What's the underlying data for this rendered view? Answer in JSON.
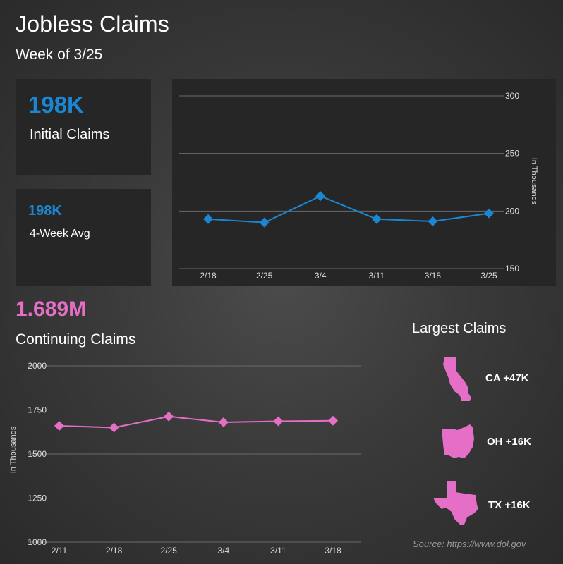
{
  "header": {
    "title": "Jobless Claims",
    "subtitle": "Week of 3/25"
  },
  "initial": {
    "value": "198K",
    "label": "Initial Claims"
  },
  "avg": {
    "value": "198K",
    "label": "4-Week Avg"
  },
  "continuing": {
    "value": "1.689M",
    "label": "Continuing Claims"
  },
  "largest": {
    "title": "Largest Claims",
    "states": [
      {
        "icon": "california-state-icon",
        "label": "CA +47K"
      },
      {
        "icon": "ohio-state-icon",
        "label": "OH +16K"
      },
      {
        "icon": "texas-state-icon",
        "label": "TX +16K"
      }
    ]
  },
  "source": "Source: https://www.dol.gov",
  "colors": {
    "initial": "#1b87d3",
    "continuing": "#e56fc6",
    "grid": "#6a6a6a"
  },
  "chart_data": [
    {
      "type": "line",
      "x": [
        "2/18",
        "2/25",
        "3/4",
        "3/11",
        "3/18",
        "3/25"
      ],
      "series": [
        {
          "values": [
            193,
            190,
            213,
            193,
            191,
            198
          ]
        }
      ],
      "ylabel": "In Thousands",
      "ylim": [
        150,
        300
      ],
      "yticks": [
        150,
        200,
        250,
        300
      ],
      "grid": true,
      "y_axis_side": "right"
    },
    {
      "type": "line",
      "x": [
        "2/11",
        "2/18",
        "2/25",
        "3/4",
        "3/11",
        "3/18"
      ],
      "series": [
        {
          "values": [
            1660,
            1650,
            1713,
            1680,
            1686,
            1689
          ]
        }
      ],
      "ylabel": "In Thousands",
      "ylim": [
        1000,
        2000
      ],
      "yticks": [
        1000,
        1250,
        1500,
        1750,
        2000
      ],
      "grid": true,
      "y_axis_side": "left"
    }
  ]
}
